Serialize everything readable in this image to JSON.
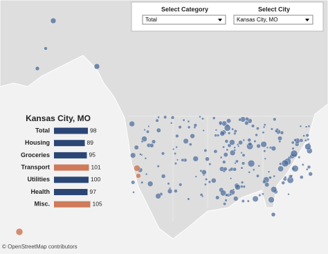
{
  "filters": [
    {
      "label": "Select Category",
      "value": "Total"
    },
    {
      "label": "Select City",
      "value": "Kansas City, MO"
    }
  ],
  "chart_data": {
    "type": "bar",
    "title": "Kansas City, MO",
    "categories": [
      "Total",
      "Housing",
      "Groceries",
      "Transport",
      "Utilities",
      "Health",
      "Misc."
    ],
    "values": [
      98,
      89,
      95,
      101,
      100,
      97,
      105
    ],
    "colors": [
      "#2b4675",
      "#2b4675",
      "#2b4675",
      "#cf7a5a",
      "#2b4675",
      "#2b4675",
      "#cf7a5a"
    ]
  },
  "attribution": "© OpenStreetMap contributors"
}
